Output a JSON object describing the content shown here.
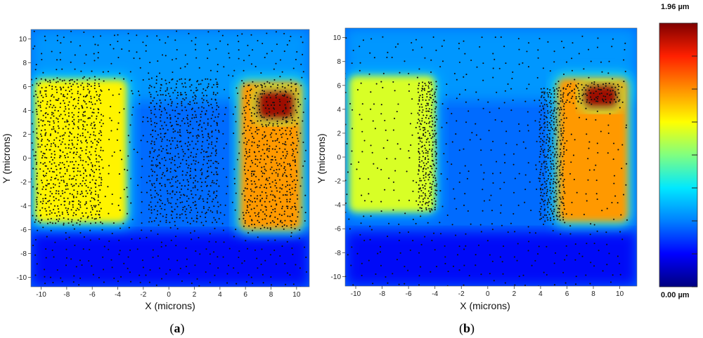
{
  "chart_data": [
    {
      "type": "heatmap",
      "panel_label": "a",
      "xlabel": "X (microns)",
      "ylabel": "Y (microns)",
      "xlim": [
        -10.8,
        11.0
      ],
      "ylim": [
        -10.8,
        10.8
      ],
      "x_ticks": [
        -10,
        -8,
        -6,
        -4,
        -2,
        0,
        2,
        4,
        6,
        8,
        10
      ],
      "y_ticks": [
        -10,
        -8,
        -6,
        -4,
        -2,
        0,
        2,
        4,
        6,
        8,
        10
      ],
      "background_height_um": 0.45,
      "regions": [
        {
          "name": "left-pad",
          "x": [
            -10.5,
            -3.3
          ],
          "y": [
            -5.4,
            6.6
          ],
          "height_um": 1.25
        },
        {
          "name": "right-pad",
          "x": [
            5.6,
            10.4
          ],
          "y": [
            -6.0,
            6.4
          ],
          "height_um": 1.45
        },
        {
          "name": "right-pad-peak",
          "x": [
            7.0,
            9.8
          ],
          "y": [
            3.3,
            5.6
          ],
          "height_um": 1.9
        }
      ],
      "dot_fields": [
        {
          "x": [
            -10.3,
            -5.2
          ],
          "y": [
            -5.4,
            6.6
          ],
          "step": [
            0.35,
            0.3
          ]
        },
        {
          "x": [
            -1.4,
            4.0
          ],
          "y": [
            -5.3,
            6.8
          ],
          "step": [
            0.4,
            0.32
          ]
        },
        {
          "x": [
            6.0,
            10.2
          ],
          "y": [
            -5.8,
            6.2
          ],
          "step": [
            0.4,
            0.3
          ]
        },
        {
          "x": [
            -10.5,
            10.8
          ],
          "y": [
            -10.6,
            10.6
          ],
          "step": [
            0.75,
            0.75
          ]
        }
      ]
    },
    {
      "type": "heatmap",
      "panel_label": "b",
      "xlabel": "X (microns)",
      "ylabel": "Y (microns)",
      "xlim": [
        -10.8,
        11.3
      ],
      "ylim": [
        -10.8,
        10.8
      ],
      "x_ticks": [
        -10,
        -8,
        -6,
        -4,
        -2,
        0,
        2,
        4,
        6,
        8,
        10
      ],
      "y_ticks": [
        -10,
        -8,
        -6,
        -4,
        -2,
        0,
        2,
        4,
        6,
        8,
        10
      ],
      "background_height_um": 0.45,
      "regions": [
        {
          "name": "left-pad",
          "x": [
            -10.5,
            -4.0
          ],
          "y": [
            -4.6,
            6.8
          ],
          "height_um": 1.15
        },
        {
          "name": "right-pad",
          "x": [
            5.3,
            10.6
          ],
          "y": [
            -5.4,
            6.6
          ],
          "height_um": 1.45
        },
        {
          "name": "right-pad-peak",
          "x": [
            7.3,
            9.8
          ],
          "y": [
            4.2,
            6.0
          ],
          "height_um": 1.9
        }
      ],
      "dot_fields": [
        {
          "x": [
            -10.5,
            11.0
          ],
          "y": [
            -10.6,
            10.6
          ],
          "step": [
            0.9,
            0.85
          ]
        },
        {
          "x": [
            -5.2,
            -3.8
          ],
          "y": [
            -4.5,
            6.4
          ],
          "step": [
            0.25,
            0.25
          ]
        },
        {
          "x": [
            4.0,
            5.8
          ],
          "y": [
            -5.3,
            5.8
          ],
          "step": [
            0.25,
            0.25
          ]
        },
        {
          "x": [
            6.0,
            10.2
          ],
          "y": [
            4.6,
            6.2
          ],
          "step": [
            0.3,
            0.25
          ]
        }
      ]
    }
  ],
  "colorbar": {
    "max_label": "1.96 µm",
    "min_label": "0.00 µm",
    "min_um": 0.0,
    "max_um": 1.96,
    "stops": [
      "#00007f",
      "#0000ff",
      "#0080ff",
      "#00e8ff",
      "#80ff80",
      "#ffff00",
      "#ff9000",
      "#ff2000",
      "#7f0000"
    ]
  },
  "captions": {
    "a": {
      "open": "(",
      "letter": "a",
      "close": ")"
    },
    "b": {
      "open": "(",
      "letter": "b",
      "close": ")"
    }
  }
}
